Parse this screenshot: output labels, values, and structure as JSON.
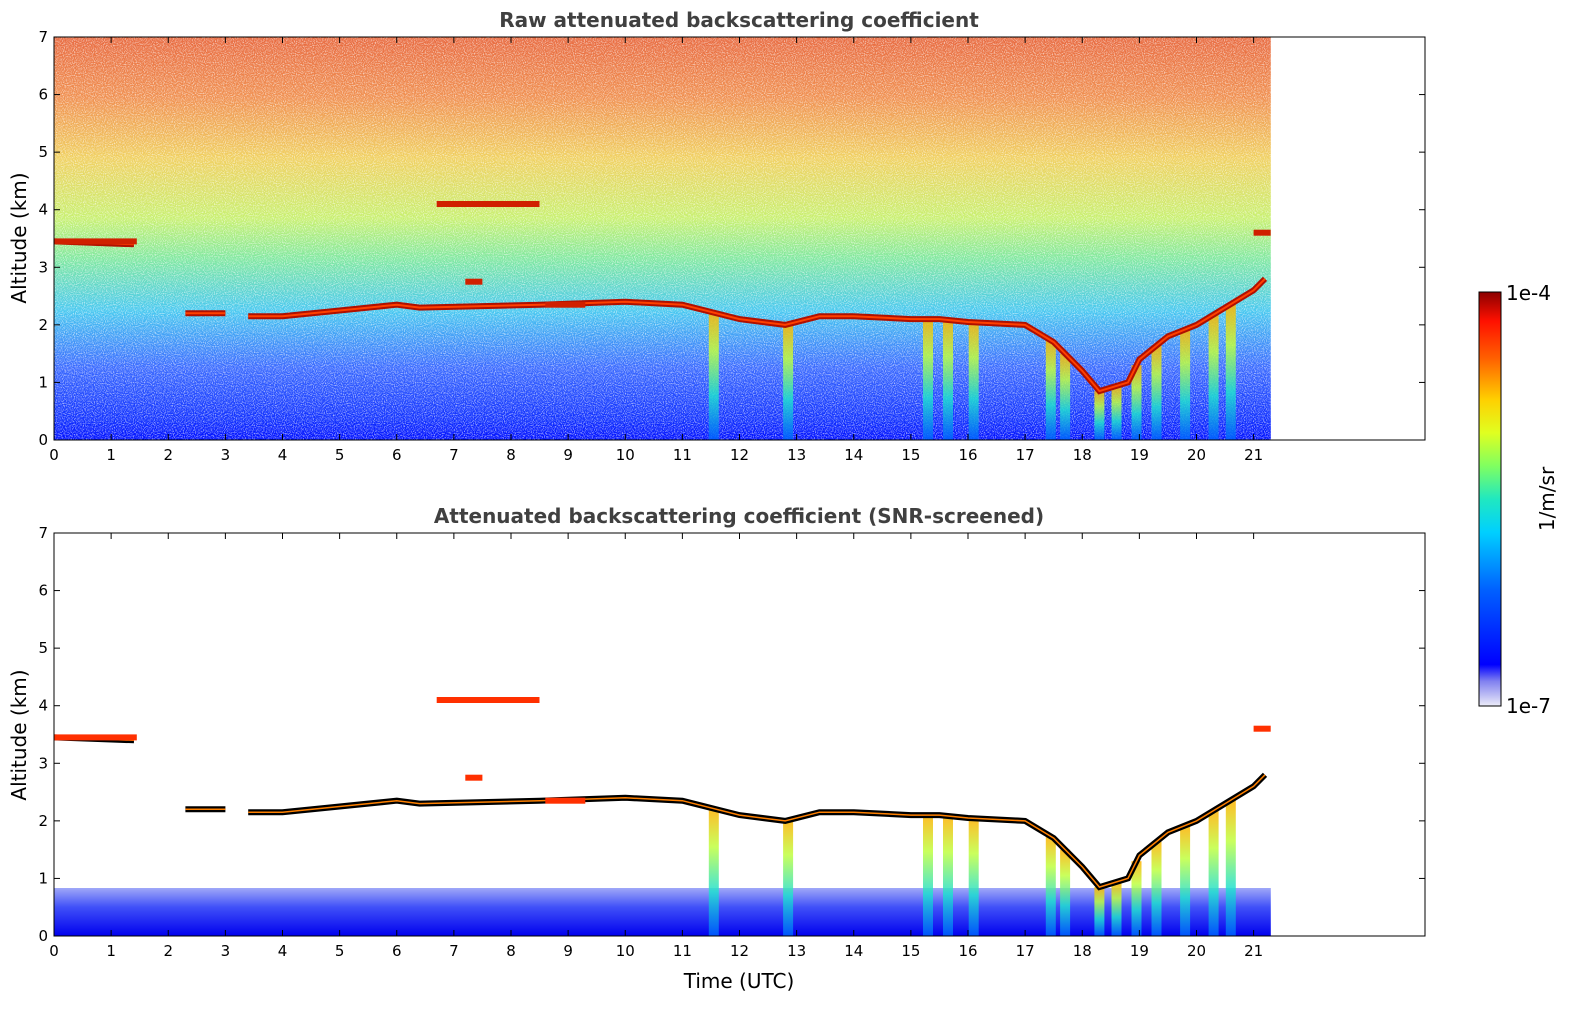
{
  "chart_data": [
    {
      "type": "heatmap",
      "title": "Raw attenuated backscattering coefficient",
      "xlabel": "",
      "ylabel": "Altitude (km)",
      "xlim": [
        0,
        24
      ],
      "ylim": [
        0,
        7
      ],
      "x_ticks": [
        "0",
        "1",
        "2",
        "3",
        "4",
        "5",
        "6",
        "7",
        "8",
        "9",
        "10",
        "11",
        "12",
        "13",
        "14",
        "15",
        "16",
        "17",
        "18",
        "19",
        "20",
        "21"
      ],
      "y_ticks": [
        "0",
        "1",
        "2",
        "3",
        "4",
        "5",
        "6",
        "7"
      ],
      "data_extent_hours": [
        0,
        21.3
      ],
      "cloud_base_km": {
        "time": [
          0.0,
          1.4,
          2.3,
          3.0,
          3.4,
          4.0,
          5.0,
          6.0,
          6.4,
          8.5,
          10.0,
          11.0,
          12.0,
          12.8,
          13.4,
          14.0,
          15.0,
          15.5,
          16.0,
          17.0,
          17.5,
          18.0,
          18.3,
          18.8,
          19.0,
          19.5,
          20.0,
          20.5,
          21.0,
          21.2
        ],
        "altitude": [
          3.45,
          3.4,
          2.2,
          2.2,
          2.15,
          2.15,
          2.25,
          2.35,
          2.3,
          2.35,
          2.4,
          2.35,
          2.1,
          2.0,
          2.15,
          2.15,
          2.1,
          2.1,
          2.05,
          2.0,
          1.7,
          1.2,
          0.85,
          1.0,
          1.4,
          1.8,
          2.0,
          2.3,
          2.6,
          2.8
        ]
      },
      "upper_cloud_km": [
        3.45,
        3.5,
        4.1,
        4.2,
        2.7,
        3.6
      ]
    },
    {
      "type": "heatmap",
      "title": "Attenuated backscattering coefficient (SNR-screened)",
      "xlabel": "Time (UTC)",
      "ylabel": "Altitude (km)",
      "xlim": [
        0,
        24
      ],
      "ylim": [
        0,
        7
      ],
      "x_ticks": [
        "0",
        "1",
        "2",
        "3",
        "4",
        "5",
        "6",
        "7",
        "8",
        "9",
        "10",
        "11",
        "12",
        "13",
        "14",
        "15",
        "16",
        "17",
        "18",
        "19",
        "20",
        "21"
      ],
      "y_ticks": [
        "0",
        "1",
        "2",
        "3",
        "4",
        "5",
        "6",
        "7"
      ],
      "data_extent_hours": [
        0,
        21.3
      ]
    }
  ],
  "colorbar": {
    "label": "1/m/sr",
    "max_label": "1e-4",
    "min_label": "1e-7",
    "scale": "log",
    "range": [
      1e-07,
      0.0001
    ],
    "colors": [
      "#e6e6fa",
      "#0000ff",
      "#00c0ff",
      "#40e0c0",
      "#c0ff40",
      "#ffd700",
      "#ff8c00",
      "#ff2000",
      "#8b0000"
    ]
  }
}
